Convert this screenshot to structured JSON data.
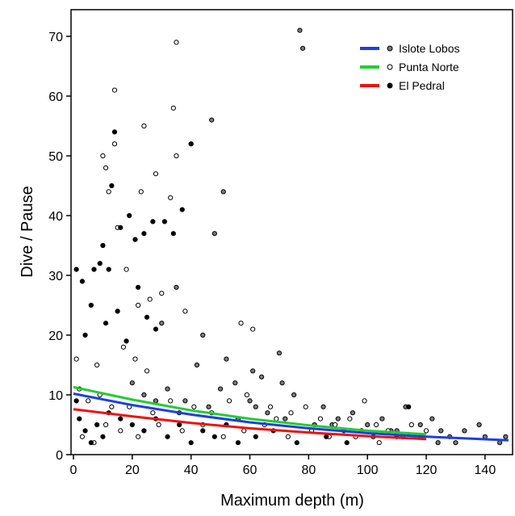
{
  "chart_data": {
    "type": "scatter",
    "title": "",
    "xlabel": "Maximum depth (m)",
    "ylabel": "Dive / Pause",
    "xlim": [
      0,
      148
    ],
    "ylim": [
      0,
      75
    ],
    "xticks": [
      0,
      20,
      40,
      60,
      80,
      100,
      120,
      140
    ],
    "yticks": [
      0,
      10,
      20,
      30,
      40,
      50,
      60,
      70
    ],
    "grid": false,
    "legend_position": "top-right",
    "series": [
      {
        "name": "Islote Lobos",
        "line_color": "#1f3fe0",
        "marker": "filled-gray-circle",
        "trend": [
          [
            0,
            10.2
          ],
          [
            20,
            8.3
          ],
          [
            40,
            6.7
          ],
          [
            60,
            5.4
          ],
          [
            80,
            4.4
          ],
          [
            100,
            3.6
          ],
          [
            120,
            3.0
          ],
          [
            148,
            2.4
          ]
        ],
        "points": [
          [
            77,
            71
          ],
          [
            78,
            68
          ],
          [
            47,
            56
          ],
          [
            40,
            52
          ],
          [
            51,
            44
          ],
          [
            48,
            37
          ],
          [
            70,
            17
          ],
          [
            52,
            16
          ],
          [
            55,
            12
          ],
          [
            61,
            14
          ],
          [
            64,
            13
          ],
          [
            71,
            12
          ],
          [
            30,
            22
          ],
          [
            35,
            28
          ],
          [
            44,
            20
          ],
          [
            42,
            15
          ],
          [
            50,
            11
          ],
          [
            60,
            9
          ],
          [
            75,
            10
          ],
          [
            85,
            8
          ],
          [
            90,
            6
          ],
          [
            95,
            7
          ],
          [
            100,
            5
          ],
          [
            105,
            6
          ],
          [
            110,
            4
          ],
          [
            113,
            8
          ],
          [
            118,
            5
          ],
          [
            122,
            6
          ],
          [
            125,
            4
          ],
          [
            128,
            3
          ],
          [
            133,
            4
          ],
          [
            138,
            5
          ],
          [
            140,
            3
          ],
          [
            145,
            2
          ],
          [
            147,
            3
          ],
          [
            28,
            9
          ],
          [
            36,
            7
          ],
          [
            46,
            8
          ],
          [
            56,
            6
          ],
          [
            66,
            7
          ],
          [
            82,
            5
          ],
          [
            92,
            4
          ],
          [
            102,
            3
          ],
          [
            112,
            3
          ],
          [
            124,
            2
          ],
          [
            130,
            2
          ],
          [
            20,
            12
          ],
          [
            24,
            10
          ],
          [
            32,
            11
          ],
          [
            38,
            9
          ],
          [
            62,
            8
          ],
          [
            72,
            6
          ],
          [
            88,
            5
          ],
          [
            98,
            4
          ],
          [
            108,
            4
          ],
          [
            118,
            3
          ]
        ]
      },
      {
        "name": "Punta Norte",
        "line_color": "#22cc33",
        "marker": "open-circle",
        "trend": [
          [
            0,
            11.3
          ],
          [
            20,
            9.2
          ],
          [
            40,
            7.4
          ],
          [
            60,
            6.0
          ],
          [
            80,
            4.9
          ],
          [
            100,
            4.0
          ],
          [
            120,
            3.4
          ]
        ],
        "points": [
          [
            35,
            69
          ],
          [
            14,
            61
          ],
          [
            24,
            55
          ],
          [
            34,
            58
          ],
          [
            35,
            50
          ],
          [
            10,
            50
          ],
          [
            11,
            48
          ],
          [
            12,
            44
          ],
          [
            14,
            52
          ],
          [
            23,
            44
          ],
          [
            28,
            47
          ],
          [
            33,
            43
          ],
          [
            15,
            38
          ],
          [
            18,
            31
          ],
          [
            22,
            25
          ],
          [
            26,
            26
          ],
          [
            30,
            27
          ],
          [
            38,
            24
          ],
          [
            57,
            22
          ],
          [
            61,
            21
          ],
          [
            1,
            16
          ],
          [
            8,
            15
          ],
          [
            17,
            18
          ],
          [
            21,
            16
          ],
          [
            25,
            14
          ],
          [
            2,
            11
          ],
          [
            5,
            9
          ],
          [
            9,
            10
          ],
          [
            13,
            8
          ],
          [
            19,
            8
          ],
          [
            27,
            7
          ],
          [
            33,
            9
          ],
          [
            41,
            8
          ],
          [
            47,
            7
          ],
          [
            53,
            9
          ],
          [
            59,
            10
          ],
          [
            67,
            8
          ],
          [
            69,
            6
          ],
          [
            74,
            7
          ],
          [
            79,
            8
          ],
          [
            84,
            6
          ],
          [
            89,
            5
          ],
          [
            94,
            6
          ],
          [
            99,
            9
          ],
          [
            103,
            5
          ],
          [
            107,
            4
          ],
          [
            115,
            5
          ],
          [
            120,
            4
          ],
          [
            3,
            3
          ],
          [
            7,
            2
          ],
          [
            11,
            5
          ],
          [
            16,
            4
          ],
          [
            22,
            3
          ],
          [
            29,
            5
          ],
          [
            37,
            4
          ],
          [
            44,
            5
          ],
          [
            51,
            3
          ],
          [
            58,
            4
          ],
          [
            65,
            5
          ],
          [
            73,
            3
          ],
          [
            81,
            4
          ],
          [
            87,
            3
          ],
          [
            96,
            3
          ],
          [
            104,
            2
          ]
        ]
      },
      {
        "name": "El Pedral",
        "line_color": "#ee1111",
        "marker": "filled-black-circle",
        "trend": [
          [
            0,
            7.6
          ],
          [
            20,
            6.4
          ],
          [
            40,
            5.3
          ],
          [
            60,
            4.4
          ],
          [
            80,
            3.7
          ],
          [
            100,
            3.1
          ],
          [
            120,
            2.6
          ]
        ],
        "points": [
          [
            1,
            31
          ],
          [
            3,
            29
          ],
          [
            7,
            31
          ],
          [
            9,
            32
          ],
          [
            10,
            35
          ],
          [
            12,
            31
          ],
          [
            14,
            54
          ],
          [
            13,
            45
          ],
          [
            16,
            38
          ],
          [
            19,
            40
          ],
          [
            24,
            37
          ],
          [
            27,
            39
          ],
          [
            31,
            39
          ],
          [
            34,
            37
          ],
          [
            37,
            41
          ],
          [
            40,
            52
          ],
          [
            21,
            36
          ],
          [
            22,
            28
          ],
          [
            25,
            23
          ],
          [
            28,
            21
          ],
          [
            6,
            25
          ],
          [
            4,
            20
          ],
          [
            11,
            22
          ],
          [
            15,
            24
          ],
          [
            18,
            19
          ],
          [
            1,
            9
          ],
          [
            2,
            6
          ],
          [
            4,
            4
          ],
          [
            6,
            2
          ],
          [
            8,
            5
          ],
          [
            10,
            3
          ],
          [
            12,
            7
          ],
          [
            16,
            6
          ],
          [
            20,
            5
          ],
          [
            24,
            4
          ],
          [
            28,
            6
          ],
          [
            32,
            3
          ],
          [
            36,
            5
          ],
          [
            40,
            2
          ],
          [
            44,
            4
          ],
          [
            48,
            3
          ],
          [
            52,
            5
          ],
          [
            56,
            2
          ],
          [
            62,
            3
          ],
          [
            68,
            4
          ],
          [
            76,
            2
          ],
          [
            86,
            3
          ],
          [
            93,
            2
          ],
          [
            110,
            3
          ],
          [
            114,
            8
          ]
        ]
      }
    ]
  }
}
